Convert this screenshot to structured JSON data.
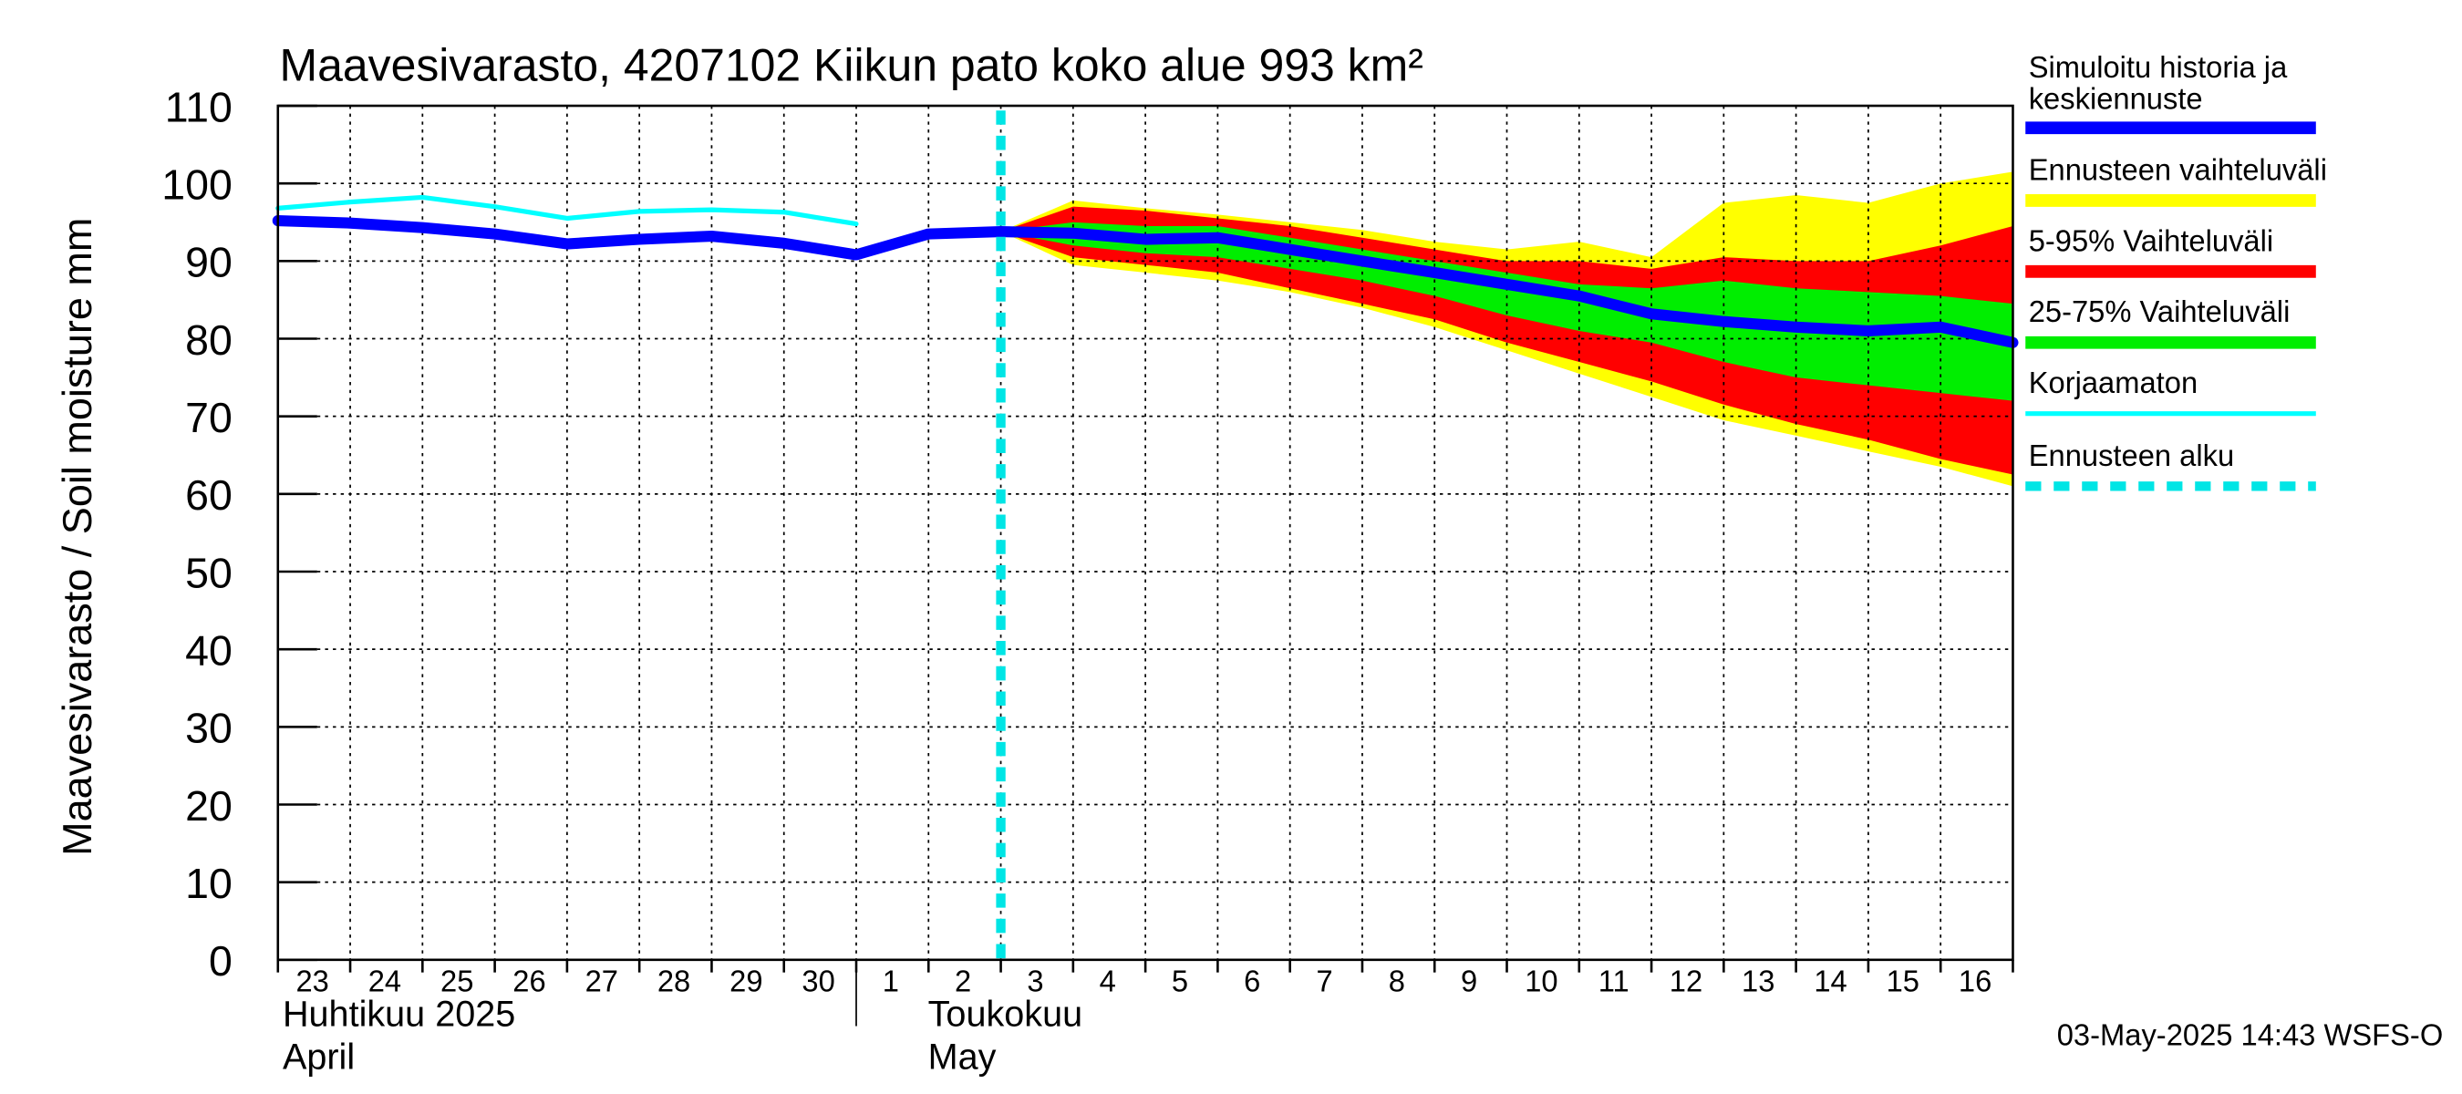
{
  "chart_data": {
    "type": "area",
    "title": "Maavesivarasto, 4207102 Kiikun pato koko alue 993 km²",
    "ylabel": "Maavesivarasto / Soil moisture   mm",
    "ylim": [
      0,
      110
    ],
    "yticks": [
      0,
      10,
      20,
      30,
      40,
      50,
      60,
      70,
      80,
      90,
      100,
      110
    ],
    "xlim": [
      0,
      24
    ],
    "x_tick_labels": [
      "23",
      "24",
      "25",
      "26",
      "27",
      "28",
      "29",
      "30",
      "1",
      "2",
      "3",
      "4",
      "5",
      "6",
      "7",
      "8",
      "9",
      "10",
      "11",
      "12",
      "13",
      "14",
      "15",
      "16"
    ],
    "month_labels": [
      {
        "line1": "Huhtikuu  2025",
        "line2": "April"
      },
      {
        "line1": "Toukokuu",
        "line2": "May"
      }
    ],
    "month_boundary_x": 8,
    "forecast_start_x": 10,
    "grid": true,
    "colors": {
      "median": "#0000ff",
      "range": "#ffff00",
      "p5_95": "#ff0000",
      "p25_75": "#00ee00",
      "uncorrected": "#00ffff",
      "forecast_start": "#00e5e5"
    },
    "series": [
      {
        "name": "Simuloitu historia ja keskiennuste",
        "key": "median",
        "x": [
          0,
          1,
          2,
          3,
          4,
          5,
          6,
          7,
          8,
          9,
          10,
          11,
          12,
          13,
          14,
          15,
          16,
          17,
          18,
          19,
          20,
          21,
          22,
          23,
          24
        ],
        "values": [
          95.2,
          94.9,
          94.3,
          93.5,
          92.2,
          92.8,
          93.2,
          92.3,
          90.8,
          93.5,
          93.8,
          93.6,
          92.8,
          93.0,
          91.5,
          90.0,
          88.5,
          87.0,
          85.5,
          83.2,
          82.2,
          81.5,
          81.0,
          81.5,
          79.5
        ]
      },
      {
        "name": "Korjaamaton",
        "key": "uncorrected",
        "x": [
          0,
          1,
          2,
          3,
          4,
          5,
          6,
          7,
          8
        ],
        "values": [
          96.8,
          97.6,
          98.2,
          97.0,
          95.5,
          96.4,
          96.6,
          96.3,
          94.8
        ]
      }
    ],
    "bands": [
      {
        "name": "Ennusteen vaihteluväli",
        "key": "range",
        "x": [
          10,
          11,
          12,
          13,
          14,
          15,
          16,
          17,
          18,
          19,
          20,
          21,
          22,
          23,
          24
        ],
        "low": [
          93.8,
          89.5,
          88.5,
          87.5,
          86.0,
          84.0,
          81.5,
          78.5,
          75.5,
          72.5,
          69.5,
          67.5,
          65.5,
          63.5,
          61.0
        ],
        "high": [
          93.8,
          97.8,
          96.8,
          96.0,
          95.0,
          94.0,
          92.5,
          91.5,
          92.5,
          90.5,
          97.5,
          98.5,
          97.5,
          100.0,
          101.5
        ]
      },
      {
        "name": "5-95% Vaihteluväli",
        "key": "p5_95",
        "x": [
          10,
          11,
          12,
          13,
          14,
          15,
          16,
          17,
          18,
          19,
          20,
          21,
          22,
          23,
          24
        ],
        "low": [
          93.8,
          90.5,
          89.5,
          88.5,
          86.5,
          84.5,
          82.5,
          79.5,
          77.0,
          74.5,
          71.5,
          69.0,
          67.0,
          64.5,
          62.5
        ],
        "high": [
          93.8,
          97.0,
          96.5,
          95.5,
          94.5,
          93.0,
          91.5,
          90.0,
          90.0,
          89.0,
          90.5,
          90.0,
          90.0,
          92.0,
          94.5
        ]
      },
      {
        "name": "25-75% Vaihteluväli",
        "key": "p25_75",
        "x": [
          10,
          11,
          12,
          13,
          14,
          15,
          16,
          17,
          18,
          19,
          20,
          21,
          22,
          23,
          24
        ],
        "low": [
          93.8,
          92.0,
          91.0,
          90.5,
          89.0,
          87.5,
          85.5,
          83.0,
          81.0,
          79.5,
          77.0,
          75.0,
          74.0,
          73.0,
          72.0
        ],
        "high": [
          93.8,
          95.0,
          94.5,
          94.5,
          93.0,
          91.5,
          90.0,
          88.5,
          87.0,
          86.5,
          87.5,
          86.5,
          86.0,
          85.5,
          84.5
        ]
      }
    ],
    "forecast_start_label": "Ennusteen alku"
  },
  "legend": [
    {
      "label": "Simuloitu historia ja",
      "label2": "keskiennuste",
      "color": "#0000ff",
      "style": "solid"
    },
    {
      "label": "Ennusteen vaihteluväli",
      "label2": "",
      "color": "#ffff00",
      "style": "solid"
    },
    {
      "label": "5-95% Vaihteluväli",
      "label2": "",
      "color": "#ff0000",
      "style": "solid"
    },
    {
      "label": "25-75% Vaihteluväli",
      "label2": "",
      "color": "#00ee00",
      "style": "solid"
    },
    {
      "label": "Korjaamaton",
      "label2": "",
      "color": "#00ffff",
      "style": "thin"
    },
    {
      "label": "Ennusteen alku",
      "label2": "",
      "color": "#00e5e5",
      "style": "dashed"
    }
  ],
  "timestamp": "03-May-2025 14:43 WSFS-O"
}
